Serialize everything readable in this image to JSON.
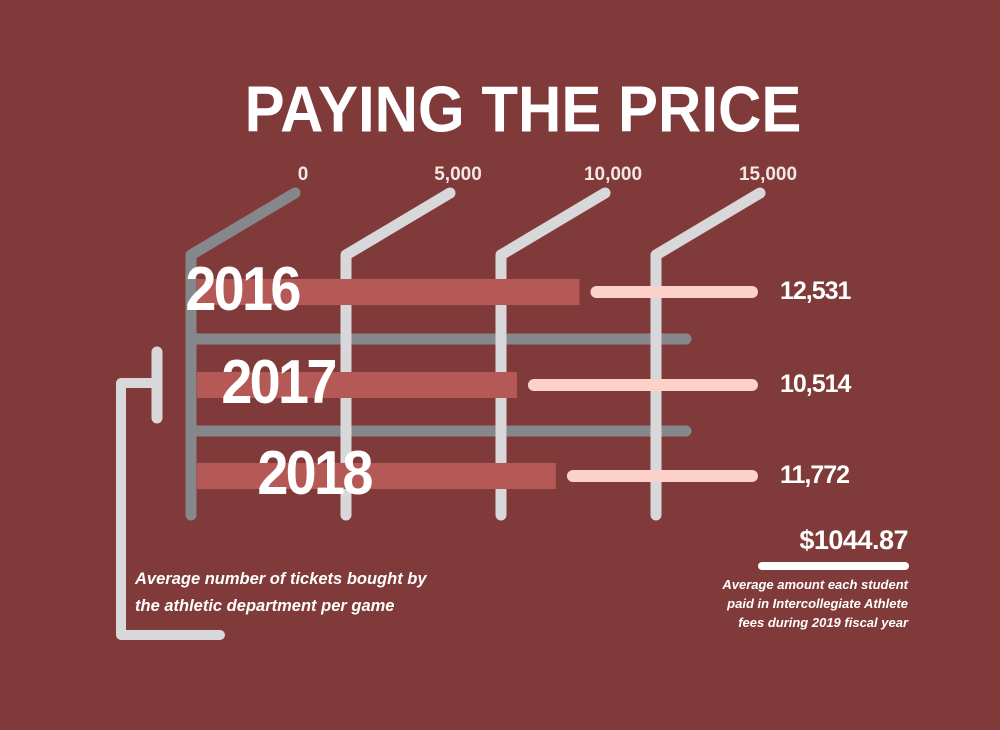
{
  "colors": {
    "background": "#803a39",
    "bar": "#b45955",
    "bar_track": "#fbd1c9",
    "axis_gray": "#86878a",
    "axis_light": "#d8d8da",
    "text": "#ffffff"
  },
  "chart_data": {
    "type": "bar",
    "orientation": "horizontal",
    "title": "PAYING THE PRICE",
    "categories": [
      "2016",
      "2017",
      "2018"
    ],
    "values": [
      12531,
      10514,
      11772
    ],
    "value_labels": [
      "12,531",
      "10,514",
      "11,772"
    ],
    "xlim": [
      0,
      15000
    ],
    "x_ticks": [
      0,
      5000,
      10000,
      15000
    ],
    "x_tick_labels": [
      "0",
      "5,000",
      "10,000",
      "15,000"
    ],
    "caption": "Average number of tickets bought by the athletic department per game",
    "xlabel": "",
    "ylabel": ""
  },
  "fee": {
    "amount": "$1044.87",
    "caption_lines": [
      "Average amount each student",
      "paid in Intercollegiate Athlete",
      "fees during 2019 fiscal year"
    ]
  },
  "caption_lines": [
    "Average number of tickets bought by",
    "the athletic department per game"
  ]
}
